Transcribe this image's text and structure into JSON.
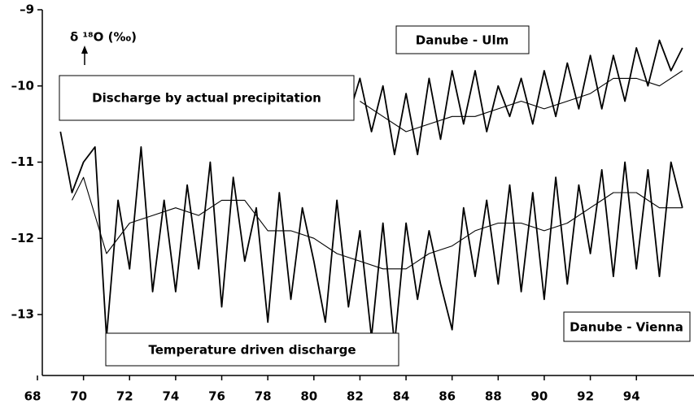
{
  "chart_data": {
    "type": "line",
    "ylabel": "δ ¹⁸O (‰)",
    "annotations": [
      "Discharge by actual precipitation",
      "Temperature driven  discharge"
    ],
    "xlim": [
      68,
      96.5
    ],
    "ylim": [
      -13.8,
      -9
    ],
    "xticks": [
      68,
      70,
      72,
      74,
      76,
      78,
      80,
      82,
      84,
      86,
      88,
      90,
      92,
      94
    ],
    "yticks": [
      {
        "value": -13,
        "label": "–13"
      },
      {
        "value": -12,
        "label": "–12"
      },
      {
        "value": -11,
        "label": "–11"
      },
      {
        "value": -10,
        "label": "–10"
      },
      {
        "value": -9,
        "label": "–9"
      }
    ],
    "series": [
      {
        "name": "Danube - Vienna",
        "color": "#000000",
        "x": [
          69.0,
          69.5,
          70.0,
          70.5,
          71.0,
          71.5,
          72.0,
          72.5,
          73.0,
          73.5,
          74.0,
          74.5,
          75.0,
          75.5,
          76.0,
          76.5,
          77.0,
          77.5,
          78.0,
          78.5,
          79.0,
          79.5,
          80.0,
          80.5,
          81.0,
          81.5,
          82.0,
          82.5,
          83.0,
          83.5,
          84.0,
          84.5,
          85.0,
          85.5,
          86.0,
          86.5,
          87.0,
          87.5,
          88.0,
          88.5,
          89.0,
          89.5,
          90.0,
          90.5,
          91.0,
          91.5,
          92.0,
          92.5,
          93.0,
          93.5,
          94.0,
          94.5,
          95.0,
          95.5,
          96.0
        ],
        "values": [
          -10.6,
          -11.4,
          -11.0,
          -10.8,
          -13.3,
          -11.5,
          -12.4,
          -10.8,
          -12.7,
          -11.5,
          -12.7,
          -11.3,
          -12.4,
          -11.0,
          -12.9,
          -11.2,
          -12.3,
          -11.6,
          -13.1,
          -11.4,
          -12.8,
          -11.6,
          -12.3,
          -13.1,
          -11.5,
          -12.9,
          -11.9,
          -13.3,
          -11.8,
          -13.4,
          -11.8,
          -12.8,
          -11.9,
          -12.6,
          -13.2,
          -11.6,
          -12.5,
          -11.5,
          -12.6,
          -11.3,
          -12.7,
          -11.4,
          -12.8,
          -11.2,
          -12.6,
          -11.3,
          -12.2,
          -11.1,
          -12.5,
          -11.0,
          -12.4,
          -11.1,
          -12.5,
          -11.0,
          -11.6
        ]
      },
      {
        "color": "#000000",
        "x": [
          69.5,
          70,
          71,
          72,
          73,
          74,
          75,
          76,
          77,
          78,
          79,
          80,
          81,
          82,
          83,
          84,
          85,
          86,
          87,
          88,
          89,
          90,
          91,
          92,
          93,
          94,
          95,
          96
        ],
        "values": [
          -11.5,
          -11.2,
          -12.2,
          -11.8,
          -11.7,
          -11.6,
          -11.7,
          -11.5,
          -11.5,
          -11.9,
          -11.9,
          -12.0,
          -12.2,
          -12.3,
          -12.4,
          -12.4,
          -12.2,
          -12.1,
          -11.9,
          -11.8,
          -11.8,
          -11.9,
          -11.8,
          -11.6,
          -11.4,
          -11.4,
          -11.6,
          -11.6
        ]
      },
      {
        "name": "Danube - Ulm",
        "color": "#000000",
        "x": [
          81.5,
          82.0,
          82.5,
          83.0,
          83.5,
          84.0,
          84.5,
          85.0,
          85.5,
          86.0,
          86.5,
          87.0,
          87.5,
          88.0,
          88.5,
          89.0,
          89.5,
          90.0,
          90.5,
          91.0,
          91.5,
          92.0,
          92.5,
          93.0,
          93.5,
          94.0,
          94.5,
          95.0,
          95.5,
          96.0
        ],
        "values": [
          -10.4,
          -9.9,
          -10.6,
          -10.0,
          -10.9,
          -10.1,
          -10.9,
          -9.9,
          -10.7,
          -9.8,
          -10.5,
          -9.8,
          -10.6,
          -10.0,
          -10.4,
          -9.9,
          -10.5,
          -9.8,
          -10.4,
          -9.7,
          -10.3,
          -9.6,
          -10.3,
          -9.6,
          -10.2,
          -9.5,
          -10.0,
          -9.4,
          -9.8,
          -9.5
        ]
      },
      {
        "color": "#000000",
        "x": [
          82,
          83,
          84,
          85,
          86,
          87,
          88,
          89,
          90,
          91,
          92,
          93,
          94,
          95,
          96
        ],
        "values": [
          -10.2,
          -10.4,
          -10.6,
          -10.5,
          -10.4,
          -10.4,
          -10.3,
          -10.2,
          -10.3,
          -10.2,
          -10.1,
          -9.9,
          -9.9,
          -10.0,
          -9.8
        ]
      }
    ]
  }
}
